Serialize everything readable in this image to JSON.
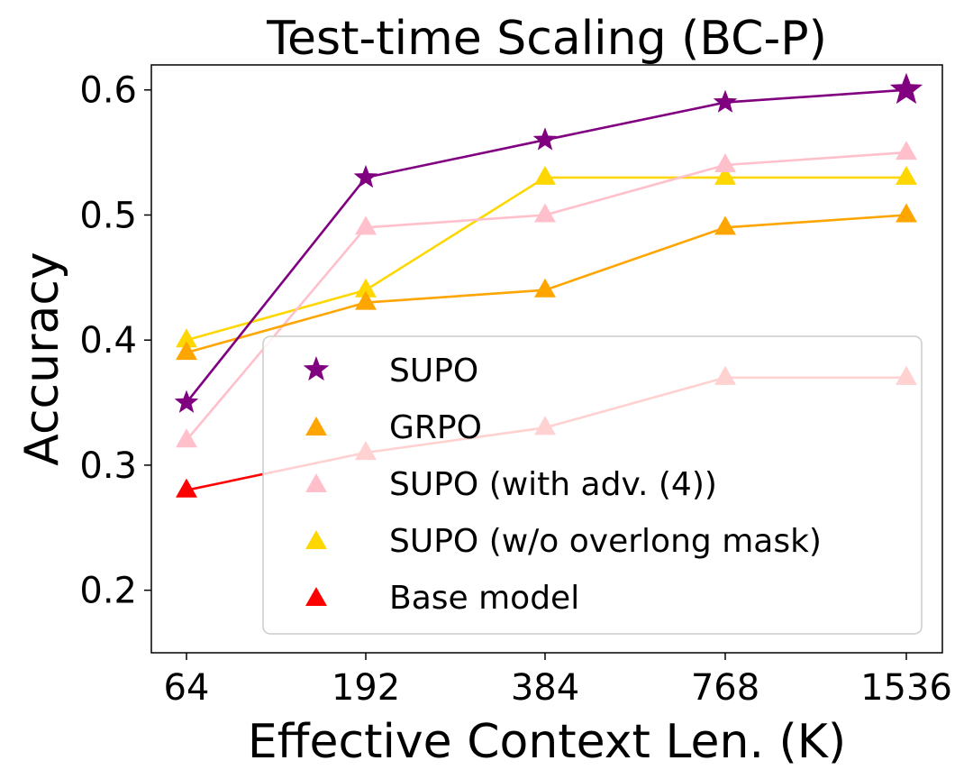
{
  "chart_data": {
    "type": "line",
    "title": "Test-time Scaling (BC-P)",
    "xlabel": "Effective Context Len. (K)",
    "ylabel": "Accuracy",
    "categories": [
      "64",
      "192",
      "384",
      "768",
      "1536"
    ],
    "yticks": [
      "0.2",
      "0.3",
      "0.4",
      "0.5",
      "0.6"
    ],
    "ylim": [
      0.15,
      0.62
    ],
    "grid": false,
    "legend_position": "bottom-right",
    "series": [
      {
        "name": "SUPO",
        "marker": "star",
        "color": "#800080",
        "values": [
          0.35,
          0.53,
          0.56,
          0.59,
          0.6
        ]
      },
      {
        "name": "GRPO",
        "marker": "triangle",
        "color": "#FFA500",
        "values": [
          0.39,
          0.43,
          0.44,
          0.49,
          0.5
        ]
      },
      {
        "name": "SUPO (with adv. (4))",
        "marker": "triangle",
        "color": "#FFC0CB",
        "values": [
          0.32,
          0.49,
          0.5,
          0.54,
          0.55
        ]
      },
      {
        "name": "SUPO (w/o overlong mask)",
        "marker": "triangle",
        "color": "#FFD700",
        "values": [
          0.4,
          0.44,
          0.53,
          0.53,
          0.53
        ]
      },
      {
        "name": "Base model",
        "marker": "triangle",
        "color": "#FF0000",
        "values": [
          0.28,
          0.31,
          0.33,
          0.37,
          0.37
        ]
      }
    ]
  }
}
